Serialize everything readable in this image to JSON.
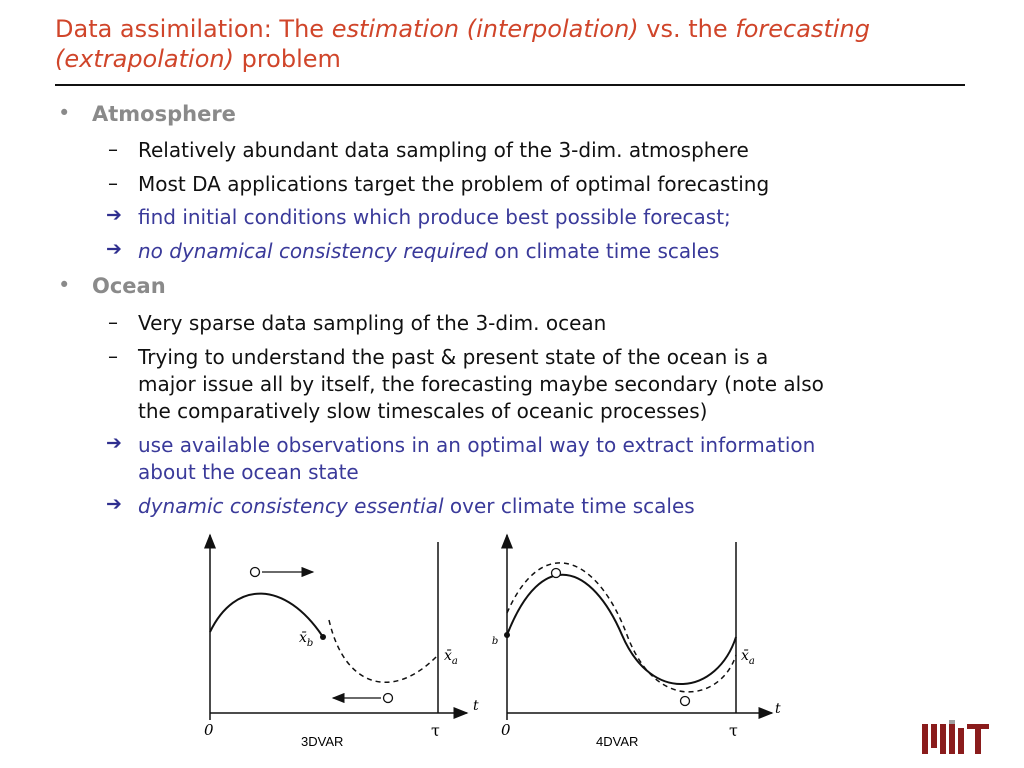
{
  "title": {
    "part1": "Data assimilation: The ",
    "part2_it": "estimation (interpolation)",
    "part3": " vs. the ",
    "part4_it": "forecasting",
    "part5_it": "(extrapolation)",
    "part6": " problem"
  },
  "sections": {
    "atmosphere": {
      "heading": "Atmosphere",
      "items": [
        "Relatively abundant data sampling of the 3-dim. atmosphere",
        "Most DA applications target the problem of optimal forecasting"
      ],
      "arrow1": "find initial conditions which produce best possible forecast;",
      "arrow2_it": "no dynamical consistency required",
      "arrow2_rest": " on climate time scales"
    },
    "ocean": {
      "heading": "Ocean",
      "item1": "Very sparse data sampling of the 3-dim. ocean",
      "item2_lines": [
        "Trying to understand the past & present state of the ocean is a",
        "major issue all by itself, the forecasting maybe secondary (note also",
        "the comparatively slow timescales of oceanic processes)"
      ],
      "arrow1_lines": [
        "use available observations in an optimal way to extract information",
        "about the ocean state"
      ],
      "arrow2_it": "dynamic consistency essential",
      "arrow2_rest": " over climate time scales"
    }
  },
  "figures": {
    "left": {
      "caption": "3DVAR",
      "origin": "0",
      "t": "t",
      "tau": "τ",
      "xb": "x̄",
      "xb_sub": "b",
      "xa": "x̄",
      "xa_sub": "a"
    },
    "right": {
      "caption": "4DVAR",
      "origin": "0",
      "t": "t",
      "tau": "τ",
      "xb": "x̄",
      "xb_sub": "b",
      "xa": "x̄",
      "xa_sub": "a"
    }
  },
  "colors": {
    "title": "#d0452a",
    "arrow_text": "#3a3a9a",
    "heading": "#8a8a8a",
    "mit": "#8a1c1c"
  },
  "logo": {
    "text": "MIT"
  }
}
